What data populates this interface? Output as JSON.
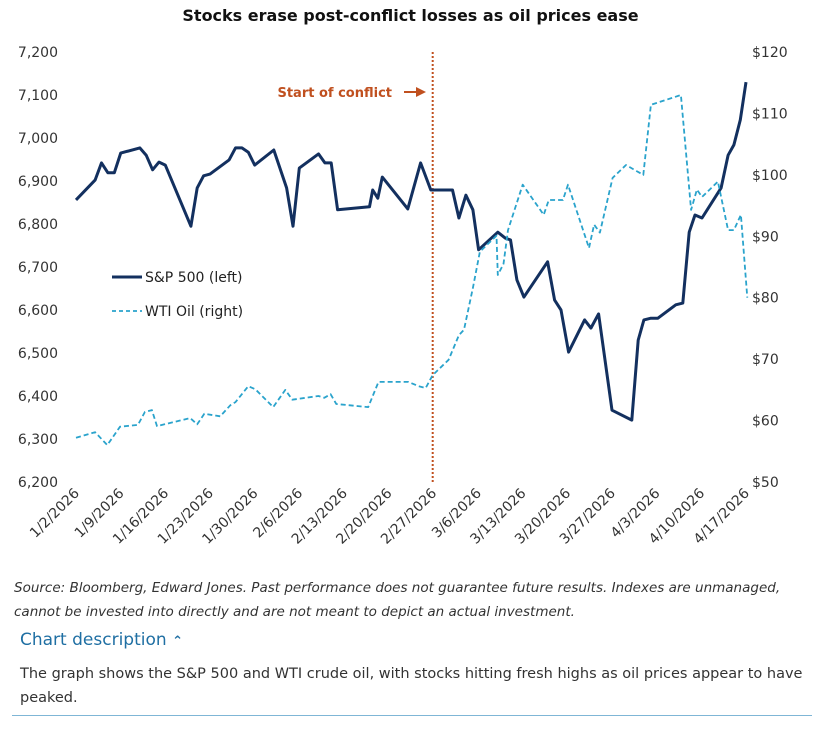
{
  "chart_data": {
    "type": "line",
    "title": "Stocks erase post-conflict losses as oil prices ease",
    "x_unit": "days since 1/2/2026",
    "x_tick_labels": [
      "1/2/2026",
      "1/9/2026",
      "1/16/2026",
      "1/23/2026",
      "1/30/2026",
      "2/6/2026",
      "2/13/2026",
      "2/20/2026",
      "2/27/2026",
      "3/6/2026",
      "3/13/2026",
      "3/20/2026",
      "3/27/2026",
      "4/3/2026",
      "4/10/2026",
      "4/17/2026"
    ],
    "xlim": [
      0,
      105
    ],
    "y_left": {
      "label": "S&P 500",
      "ylim": [
        6200,
        7200
      ],
      "ticks": [
        "6,200",
        "6,300",
        "6,400",
        "6,500",
        "6,600",
        "6,700",
        "6,800",
        "6,900",
        "7,000",
        "7,100",
        "7,200"
      ]
    },
    "y_right": {
      "label": "WTI Oil",
      "ylim": [
        50,
        120
      ],
      "ticks": [
        "$50",
        "$60",
        "$70",
        "$80",
        "$90",
        "$100",
        "$110",
        "$120"
      ]
    },
    "annotation": {
      "text": "Start of conflict",
      "x": 55.9,
      "color": "#c0501f"
    },
    "legend": {
      "placement": "center-left"
    },
    "series": [
      {
        "name": "S&P 500 (left)",
        "axis": "left",
        "style": "solid",
        "color": "#13305f",
        "x": [
          0,
          3,
          4,
          5,
          6,
          7,
          10,
          11,
          12,
          13,
          14,
          18,
          19,
          20,
          21,
          24,
          25,
          26,
          27,
          28,
          31,
          33,
          34,
          35,
          38,
          39,
          40,
          41,
          46,
          46.5,
          47.3,
          48,
          52,
          54,
          55.6,
          59,
          60,
          61.1,
          62.2,
          63.1,
          66.1,
          67.3,
          68.1,
          69.1,
          70.2,
          73.9,
          75,
          76,
          77.2,
          79.7,
          80.7,
          81.9,
          84,
          87.1,
          88.1,
          89,
          90.1,
          91.2,
          94,
          95.1,
          96.1,
          97,
          98.1,
          101.1,
          102.2,
          103.1,
          104.1,
          105
        ],
        "values": [
          6856,
          6902,
          6942,
          6919,
          6919,
          6965,
          6977,
          6960,
          6926,
          6944,
          6937,
          6795,
          6884,
          6912,
          6916,
          6949,
          6977,
          6977,
          6967,
          6937,
          6972,
          6884,
          6795,
          6930,
          6963,
          6942,
          6942,
          6833,
          6840,
          6879,
          6860,
          6909,
          6835,
          6942,
          6879,
          6879,
          6814,
          6867,
          6833,
          6740,
          6781,
          6767,
          6763,
          6670,
          6630,
          6712,
          6623,
          6600,
          6502,
          6577,
          6558,
          6591,
          6367,
          6344,
          6530,
          6577,
          6581,
          6581,
          6612,
          6616,
          6781,
          6821,
          6814,
          6884,
          6960,
          6984,
          7042,
          7130
        ]
      },
      {
        "name": "WTI Oil (right)",
        "axis": "right",
        "style": "dashed",
        "color": "#2aa3cc",
        "x": [
          0,
          3,
          4.9,
          6.9,
          9.7,
          10.8,
          11.9,
          12.7,
          17.9,
          19,
          20.1,
          22.6,
          24.2,
          25,
          27,
          28.1,
          30.9,
          32.8,
          33.9,
          38,
          38.9,
          39.9,
          40.8,
          45.8,
          47.4,
          52.1,
          53.7,
          54.8,
          55.9,
          58.4,
          60,
          60.8,
          62.2,
          63.3,
          65.9,
          66.1,
          67,
          67.7,
          70,
          73.3,
          74.1,
          76.3,
          77.1,
          80.4,
          81.2,
          82.1,
          84.1,
          86.2,
          88.9,
          90.1,
          94.8,
          96.4,
          97.3,
          98.1,
          100.6,
          102.2,
          103.1,
          104.2,
          105.2
        ],
        "values": [
          57.2,
          58.1,
          56.0,
          59.0,
          59.3,
          61.4,
          61.7,
          59.1,
          60.4,
          59.4,
          61.1,
          60.7,
          62.5,
          63.0,
          65.6,
          65.1,
          62.2,
          65.0,
          63.4,
          64.0,
          63.7,
          64.3,
          62.7,
          62.2,
          66.3,
          66.3,
          65.6,
          65.3,
          67.4,
          69.9,
          73.9,
          74.8,
          81.6,
          87.5,
          90.1,
          83.7,
          85.5,
          91.0,
          98.4,
          93.5,
          95.9,
          95.9,
          98.4,
          88.1,
          91.9,
          90.6,
          99.5,
          101.6,
          100.0,
          111.4,
          113.0,
          94.3,
          97.6,
          96.4,
          98.9,
          91.0,
          91.0,
          93.5,
          80.0
        ]
      }
    ]
  },
  "footer": {
    "source": "Source: Bloomberg, Edward Jones. Past performance does not guarantee future results. Indexes are unmanaged, cannot be invested into directly and are not meant to depict an actual investment.",
    "description_toggle": "Chart description",
    "description": "The graph shows the S&P 500 and WTI crude oil, with stocks hitting fresh highs as oil prices appear to have peaked."
  }
}
